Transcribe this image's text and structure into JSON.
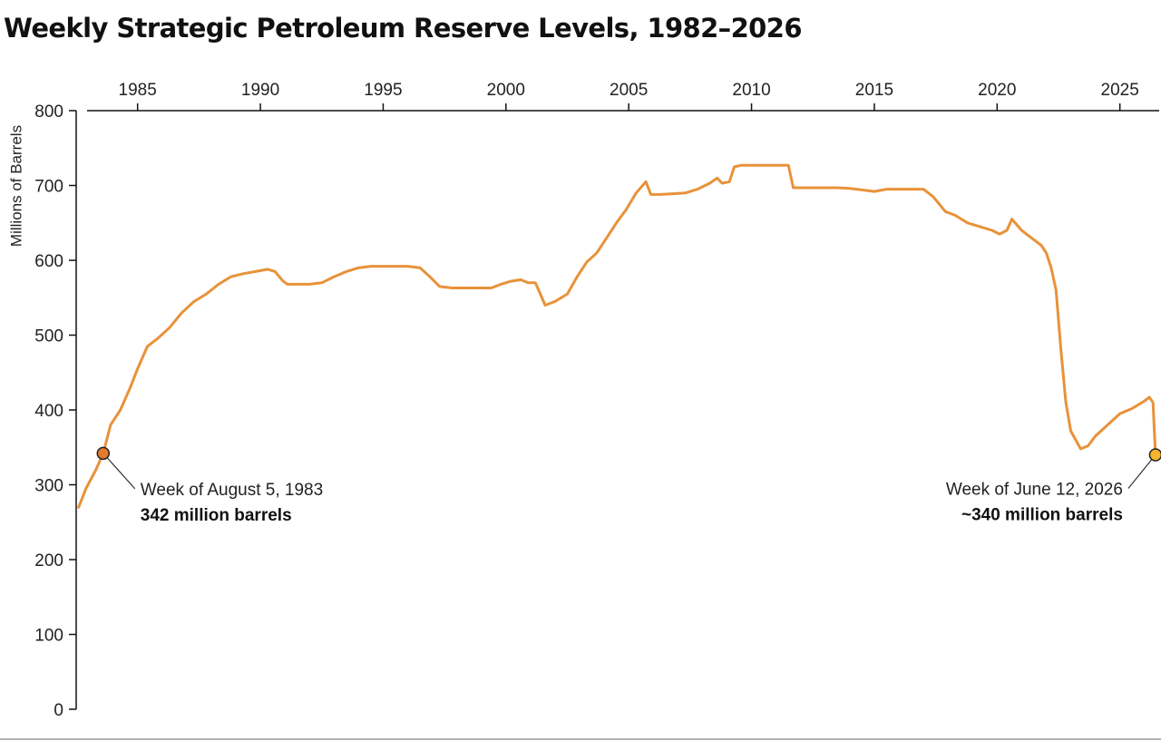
{
  "chart_data": {
    "type": "line",
    "title": "Weekly Strategic Petroleum Reserve Levels, 1982–2026",
    "ylabel": "Millions of Barrels",
    "xlabel": "",
    "ylim": [
      0,
      800
    ],
    "xlim": [
      1982.5,
      2026.6
    ],
    "x_ticks": [
      "1985",
      "1990",
      "1995",
      "2000",
      "2005",
      "2010",
      "2015",
      "2020",
      "2025"
    ],
    "y_ticks": [
      "0",
      "100",
      "200",
      "300",
      "400",
      "500",
      "600",
      "700",
      "800"
    ],
    "grid": false,
    "axis_position": "x-axis on top",
    "colors": {
      "line": "#e8923a",
      "start_marker": "#e47b2c",
      "end_marker": "#f5b52e",
      "axis": "#111111"
    },
    "series": [
      {
        "x": [
          1982.6,
          1982.9,
          1983.3,
          1983.6,
          1983.9,
          1984.3,
          1984.7,
          1985.0,
          1985.4,
          1985.8,
          1986.3,
          1986.8,
          1987.3,
          1987.8,
          1988.3,
          1988.8,
          1989.3,
          1989.8,
          1990.3,
          1990.6,
          1990.9,
          1991.1,
          1991.4,
          1992.0,
          1992.5,
          1993.0,
          1993.5,
          1994.0,
          1994.5,
          1995.0,
          1995.5,
          1996.0,
          1996.5,
          1996.9,
          1997.3,
          1997.8,
          1998.3,
          1998.9,
          1999.4,
          1999.8,
          2000.2,
          2000.6,
          2000.9,
          2001.2,
          2001.6,
          2002.0,
          2002.5,
          2002.9,
          2003.3,
          2003.7,
          2004.1,
          2004.5,
          2004.9,
          2005.3,
          2005.7,
          2005.9,
          2006.3,
          2006.8,
          2007.3,
          2007.8,
          2008.3,
          2008.6,
          2008.8,
          2009.1,
          2009.3,
          2009.6,
          2010.0,
          2010.5,
          2011.0,
          2011.5,
          2011.7,
          2012.0,
          2012.5,
          2013.0,
          2013.5,
          2014.0,
          2014.5,
          2015.0,
          2015.5,
          2016.0,
          2016.5,
          2017.0,
          2017.4,
          2017.9,
          2018.3,
          2018.8,
          2019.3,
          2019.8,
          2020.1,
          2020.4,
          2020.6,
          2021.0,
          2021.4,
          2021.8,
          2022.0,
          2022.2,
          2022.4,
          2022.6,
          2022.8,
          2023.0,
          2023.4,
          2023.7,
          2024.0,
          2024.5,
          2025.0,
          2025.5,
          2026.0,
          2026.2,
          2026.35,
          2026.45
        ],
        "y": [
          270,
          295,
          320,
          342,
          380,
          400,
          430,
          455,
          485,
          495,
          510,
          530,
          545,
          555,
          568,
          578,
          582,
          585,
          588,
          585,
          573,
          568,
          568,
          568,
          570,
          578,
          585,
          590,
          592,
          592,
          592,
          592,
          590,
          578,
          565,
          563,
          563,
          563,
          563,
          568,
          572,
          574,
          570,
          570,
          540,
          545,
          555,
          578,
          598,
          610,
          630,
          650,
          668,
          690,
          705,
          688,
          688,
          689,
          690,
          695,
          703,
          710,
          703,
          705,
          725,
          727,
          727,
          727,
          727,
          727,
          697,
          697,
          697,
          697,
          697,
          696,
          694,
          692,
          695,
          695,
          695,
          695,
          685,
          665,
          660,
          650,
          645,
          640,
          635,
          640,
          655,
          640,
          630,
          620,
          610,
          590,
          560,
          480,
          410,
          372,
          348,
          352,
          365,
          380,
          395,
          402,
          412,
          417,
          410,
          340
        ]
      }
    ],
    "annotations": [
      {
        "x": 1983.6,
        "y": 342,
        "label": "Week of August 5, 1983",
        "value": "342 million barrels"
      },
      {
        "x": 2026.45,
        "y": 340,
        "label": "Week of June 12, 2026",
        "value": "~340 million barrels"
      }
    ]
  }
}
